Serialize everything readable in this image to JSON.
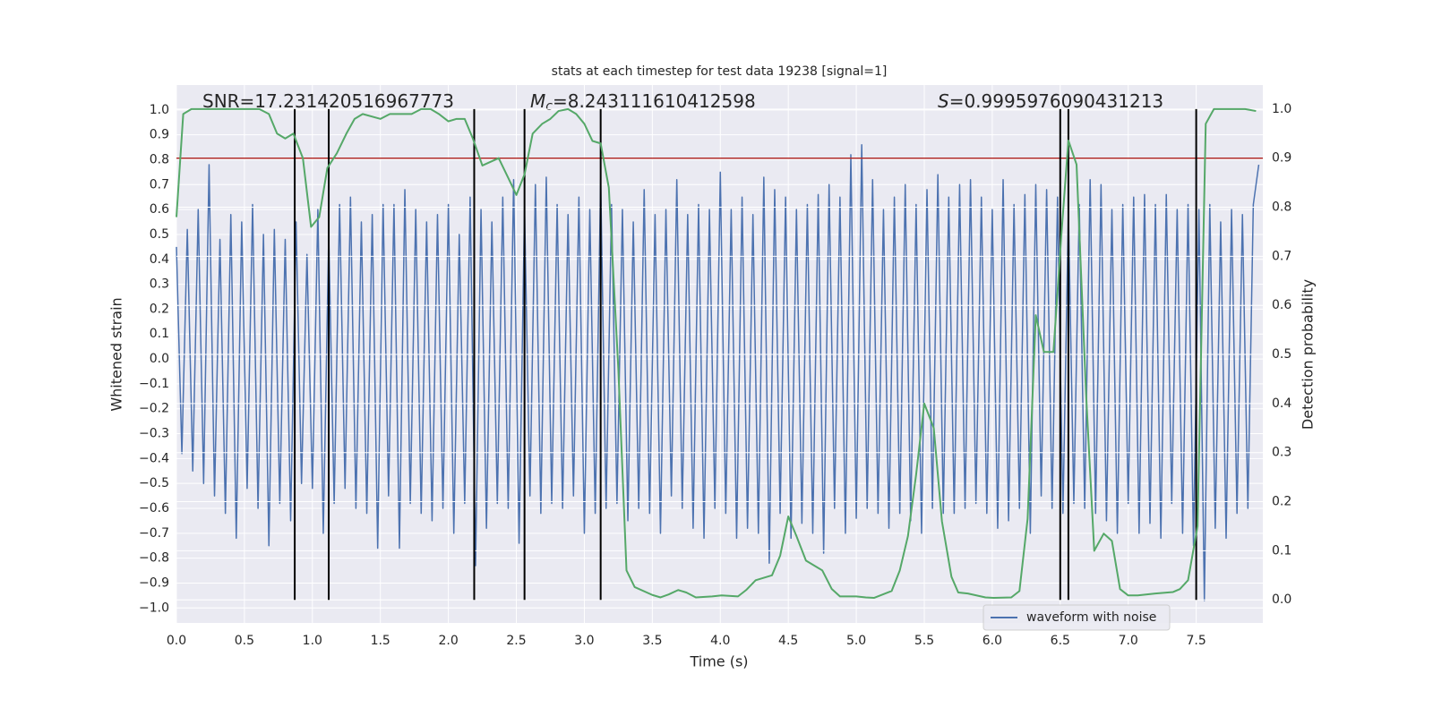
{
  "chart_data": {
    "type": "line",
    "title": "stats at each timestep for test data 19238 [signal=1]",
    "xlabel": "Time (s)",
    "ylabel": "Whitened strain",
    "y2label": "Detection probability",
    "annotations": [
      {
        "text": "SNR=17.231420516967773"
      },
      {
        "symbol": "M",
        "subscript": "c",
        "text": "=8.243111610412598"
      },
      {
        "symbol": "S",
        "text": "=0.9995976090431213"
      }
    ],
    "xlim": [
      0,
      7.99
    ],
    "ylim": [
      -1.06,
      1.1
    ],
    "y2lim": [
      -0.047,
      1.049
    ],
    "xticks": [
      {
        "value": 0,
        "label": "0.0"
      },
      {
        "value": 0.5,
        "label": "0.5"
      },
      {
        "value": 1,
        "label": "1.0"
      },
      {
        "value": 1.5,
        "label": "1.5"
      },
      {
        "value": 2,
        "label": "2.0"
      },
      {
        "value": 2.5,
        "label": "2.5"
      },
      {
        "value": 3,
        "label": "3.0"
      },
      {
        "value": 3.5,
        "label": "3.5"
      },
      {
        "value": 4,
        "label": "4.0"
      },
      {
        "value": 4.5,
        "label": "4.5"
      },
      {
        "value": 5,
        "label": "5.0"
      },
      {
        "value": 5.5,
        "label": "5.5"
      },
      {
        "value": 6,
        "label": "6.0"
      },
      {
        "value": 6.5,
        "label": "6.5"
      },
      {
        "value": 7,
        "label": "7.0"
      },
      {
        "value": 7.5,
        "label": "7.5"
      }
    ],
    "yticks": [
      {
        "value": 1,
        "label": "1.0"
      },
      0.9,
      0.8,
      0.7,
      0.6,
      0.5,
      0.4,
      0.3,
      0.2,
      0.1,
      {
        "value": 0,
        "label": "0.0"
      },
      {
        "value": -0.1,
        "label": "−0.1"
      },
      {
        "value": -0.2,
        "label": "−0.2"
      },
      {
        "value": -0.3,
        "label": "−0.3"
      },
      {
        "value": -0.4,
        "label": "−0.4"
      },
      {
        "value": -0.5,
        "label": "−0.5"
      },
      {
        "value": -0.6,
        "label": "−0.6"
      },
      {
        "value": -0.7,
        "label": "−0.7"
      },
      {
        "value": -0.8,
        "label": "−0.8"
      },
      {
        "value": -0.9,
        "label": "−0.9"
      },
      {
        "value": -1,
        "label": "−1.0"
      }
    ],
    "y2ticks": [
      {
        "value": 0,
        "label": "0.0"
      },
      0.1,
      0.2,
      0.3,
      0.4,
      0.5,
      0.6,
      0.7,
      0.8,
      0.9,
      {
        "value": 1,
        "label": "1.0"
      }
    ],
    "grid": true,
    "legend": "lower right",
    "threshold": {
      "value": 0.9,
      "axis": "y2",
      "color": "#b5312d"
    },
    "vlines": [
      0.87,
      1.12,
      2.19,
      2.56,
      3.12,
      6.5,
      6.56,
      7.5
    ],
    "vline_span": [
      0,
      1
    ],
    "vline_color": "#000000",
    "series": [
      {
        "name": "waveform with noise",
        "color": "#4c72b0",
        "axis": "y",
        "x": [
          0,
          0.04,
          0.08,
          0.12,
          0.16,
          0.2,
          0.24,
          0.28,
          0.32,
          0.36,
          0.4,
          0.44,
          0.48,
          0.52,
          0.56,
          0.6,
          0.64,
          0.68,
          0.72,
          0.76,
          0.8,
          0.84,
          0.88,
          0.92,
          0.96,
          1,
          1.04,
          1.08,
          1.12,
          1.16,
          1.2,
          1.24,
          1.28,
          1.32,
          1.36,
          1.4,
          1.44,
          1.48,
          1.52,
          1.56,
          1.6,
          1.64,
          1.68,
          1.72,
          1.76,
          1.8,
          1.84,
          1.88,
          1.92,
          1.96,
          2,
          2.04,
          2.08,
          2.12,
          2.16,
          2.2,
          2.24,
          2.28,
          2.32,
          2.36,
          2.4,
          2.44,
          2.48,
          2.52,
          2.56,
          2.6,
          2.64,
          2.68,
          2.72,
          2.76,
          2.8,
          2.84,
          2.88,
          2.92,
          2.96,
          3,
          3.04,
          3.08,
          3.12,
          3.16,
          3.2,
          3.24,
          3.28,
          3.32,
          3.36,
          3.4,
          3.44,
          3.48,
          3.52,
          3.56,
          3.6,
          3.64,
          3.68,
          3.72,
          3.76,
          3.8,
          3.84,
          3.88,
          3.92,
          3.96,
          4,
          4.04,
          4.08,
          4.12,
          4.16,
          4.2,
          4.24,
          4.28,
          4.32,
          4.36,
          4.4,
          4.44,
          4.48,
          4.52,
          4.56,
          4.6,
          4.64,
          4.68,
          4.72,
          4.76,
          4.8,
          4.84,
          4.88,
          4.92,
          4.96,
          5,
          5.04,
          5.08,
          5.12,
          5.16,
          5.2,
          5.24,
          5.28,
          5.32,
          5.36,
          5.4,
          5.44,
          5.48,
          5.52,
          5.56,
          5.6,
          5.64,
          5.68,
          5.72,
          5.76,
          5.8,
          5.84,
          5.88,
          5.92,
          5.96,
          6,
          6.04,
          6.08,
          6.12,
          6.16,
          6.2,
          6.24,
          6.28,
          6.32,
          6.36,
          6.4,
          6.44,
          6.48,
          6.52,
          6.56,
          6.6,
          6.64,
          6.68,
          6.72,
          6.76,
          6.8,
          6.84,
          6.88,
          6.92,
          6.96,
          7,
          7.04,
          7.08,
          7.12,
          7.16,
          7.2,
          7.24,
          7.28,
          7.32,
          7.36,
          7.4,
          7.44,
          7.48,
          7.52,
          7.56,
          7.6,
          7.64,
          7.68,
          7.72,
          7.76,
          7.8,
          7.84,
          7.88,
          7.92,
          7.96
        ],
        "values": [
          0.45,
          -0.38,
          0.52,
          -0.45,
          0.6,
          -0.5,
          0.78,
          -0.55,
          0.48,
          -0.62,
          0.58,
          -0.72,
          0.55,
          -0.52,
          0.62,
          -0.6,
          0.5,
          -0.75,
          0.52,
          -0.58,
          0.48,
          -0.65,
          0.55,
          -0.5,
          0.42,
          -0.52,
          0.6,
          -0.7,
          0.5,
          -0.58,
          0.62,
          -0.52,
          0.65,
          -0.6,
          0.55,
          -0.62,
          0.58,
          -0.76,
          0.62,
          -0.55,
          0.62,
          -0.76,
          0.68,
          -0.58,
          0.6,
          -0.62,
          0.55,
          -0.65,
          0.58,
          -0.6,
          0.62,
          -0.7,
          0.5,
          -0.58,
          0.65,
          -0.83,
          0.6,
          -0.68,
          0.55,
          -0.58,
          0.65,
          -0.6,
          0.72,
          -0.74,
          0.6,
          -0.55,
          0.7,
          -0.62,
          0.73,
          -0.58,
          0.62,
          -0.6,
          0.58,
          -0.55,
          0.65,
          -0.7,
          0.6,
          -0.62,
          0.72,
          -0.6,
          0.62,
          -0.58,
          0.6,
          -0.65,
          0.55,
          -0.6,
          0.68,
          -0.62,
          0.58,
          -0.7,
          0.6,
          -0.55,
          0.72,
          -0.6,
          0.58,
          -0.68,
          0.62,
          -0.72,
          0.6,
          -0.6,
          0.75,
          -0.62,
          0.6,
          -0.72,
          0.65,
          -0.68,
          0.58,
          -0.7,
          0.73,
          -0.82,
          0.68,
          -0.62,
          0.65,
          -0.72,
          0.6,
          -0.66,
          0.62,
          -0.7,
          0.66,
          -0.78,
          0.7,
          -0.6,
          0.65,
          -0.7,
          0.82,
          -0.64,
          0.86,
          -0.6,
          0.72,
          -0.62,
          0.6,
          -0.68,
          0.65,
          -0.62,
          0.7,
          -0.65,
          0.62,
          -0.7,
          0.68,
          -0.6,
          0.74,
          -0.62,
          0.65,
          -0.62,
          0.7,
          -0.6,
          0.72,
          -0.58,
          0.65,
          -0.62,
          0.6,
          -0.68,
          0.72,
          -0.65,
          0.62,
          -0.6,
          0.66,
          -0.7,
          0.7,
          -0.55,
          0.68,
          -0.6,
          0.65,
          -0.62,
          0.6,
          -0.58,
          0.62,
          -0.6,
          0.72,
          -0.62,
          0.7,
          -0.65,
          0.6,
          -0.7,
          0.62,
          -0.58,
          0.65,
          -0.7,
          0.66,
          -0.66,
          0.62,
          -0.72,
          0.66,
          -0.58,
          0.6,
          -0.7,
          0.62,
          -0.75,
          0.6,
          -0.97,
          0.62,
          -0.68,
          0.55,
          -0.72,
          0.6,
          -0.62,
          0.58,
          -0.6,
          0.62,
          0.78
        ]
      },
      {
        "color": "#55a868",
        "axis": "y2",
        "x": [
          0,
          0.05,
          0.11,
          0.61,
          0.68,
          0.74,
          0.8,
          0.86,
          0.93,
          0.99,
          1.05,
          1.11,
          1.18,
          1.25,
          1.31,
          1.37,
          1.5,
          1.57,
          1.73,
          1.8,
          1.87,
          1.93,
          2,
          2.06,
          2.12,
          2.18,
          2.25,
          2.37,
          2.44,
          2.5,
          2.56,
          2.62,
          2.69,
          2.75,
          2.81,
          2.88,
          2.94,
          3,
          3.06,
          3.12,
          3.18,
          3.25,
          3.31,
          3.37,
          3.5,
          3.56,
          3.62,
          3.69,
          3.75,
          3.82,
          3.94,
          4.01,
          4.13,
          4.19,
          4.26,
          4.38,
          4.44,
          4.5,
          4.56,
          4.63,
          4.75,
          4.82,
          4.88,
          5,
          5.07,
          5.13,
          5.26,
          5.32,
          5.38,
          5.44,
          5.5,
          5.57,
          5.63,
          5.7,
          5.75,
          5.82,
          5.95,
          6.01,
          6.14,
          6.2,
          6.26,
          6.32,
          6.38,
          6.45,
          6.51,
          6.56,
          6.62,
          6.69,
          6.75,
          6.82,
          6.88,
          6.94,
          7,
          7.07,
          7.2,
          7.33,
          7.38,
          7.44,
          7.51,
          7.57,
          7.63,
          7.76,
          7.86,
          7.94
        ],
        "values": [
          0.78,
          0.99,
          1,
          1,
          0.99,
          0.95,
          0.94,
          0.95,
          0.9,
          0.76,
          0.78,
          0.88,
          0.91,
          0.95,
          0.98,
          0.99,
          0.98,
          0.99,
          0.99,
          1,
          1,
          0.99,
          0.975,
          0.98,
          0.98,
          0.94,
          0.885,
          0.9,
          0.86,
          0.825,
          0.867,
          0.95,
          0.97,
          0.98,
          0.996,
          1,
          0.99,
          0.97,
          0.935,
          0.93,
          0.84,
          0.47,
          0.06,
          0.026,
          0.01,
          0.005,
          0.011,
          0.02,
          0.015,
          0.005,
          0.007,
          0.009,
          0.007,
          0.02,
          0.04,
          0.05,
          0.09,
          0.17,
          0.13,
          0.08,
          0.06,
          0.022,
          0.007,
          0.007,
          0.005,
          0.004,
          0.018,
          0.06,
          0.13,
          0.255,
          0.4,
          0.35,
          0.16,
          0.047,
          0.015,
          0.013,
          0.005,
          0.004,
          0.005,
          0.018,
          0.165,
          0.58,
          0.505,
          0.505,
          0.75,
          0.936,
          0.887,
          0.42,
          0.1,
          0.135,
          0.12,
          0.022,
          0.009,
          0.009,
          0.013,
          0.016,
          0.022,
          0.04,
          0.15,
          0.97,
          1,
          1,
          1,
          0.996
        ]
      }
    ]
  }
}
